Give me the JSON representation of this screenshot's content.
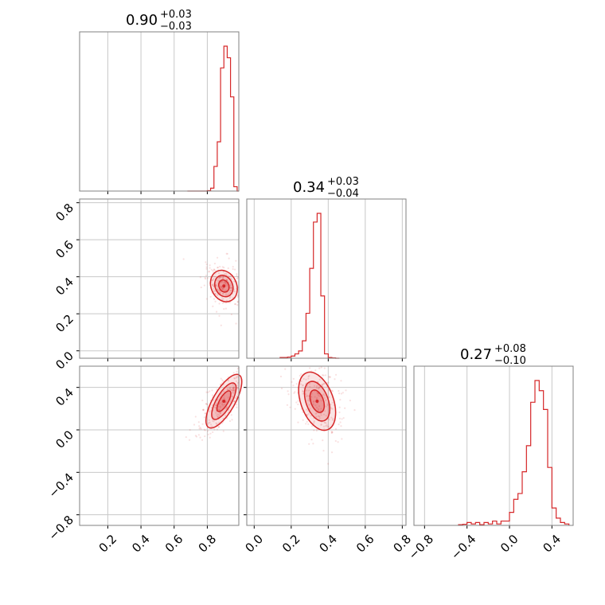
{
  "colors": {
    "accent": "#d62728",
    "grid": "#c8c8c8",
    "axes": "#808080"
  },
  "chart_data": {
    "type": "corner",
    "grid": true,
    "params": [
      {
        "median": "0.90",
        "plus": "+0.03",
        "minus": "−0.03",
        "range": [
          0.03,
          0.99
        ],
        "ticks": [
          0.2,
          0.4,
          0.6,
          0.8
        ],
        "tick_labels": [
          "0.2",
          "0.4",
          "0.6",
          "0.8"
        ]
      },
      {
        "median": "0.34",
        "plus": "+0.03",
        "minus": "−0.04",
        "range": [
          -0.04,
          0.82
        ],
        "ticks": [
          0.0,
          0.2,
          0.4,
          0.6,
          0.8
        ],
        "tick_labels": [
          "0.0",
          "0.2",
          "0.4",
          "0.6",
          "0.8"
        ]
      },
      {
        "median": "0.27",
        "plus": "+0.08",
        "minus": "−0.10",
        "range": [
          -0.9,
          0.6
        ],
        "ticks": [
          -0.8,
          -0.4,
          0.0,
          0.4
        ],
        "tick_labels": [
          "−0.8",
          "−0.4",
          "0.0",
          "0.4"
        ]
      }
    ],
    "histograms": [
      {
        "param": 0,
        "bin_width": 0.02,
        "bins": [
          0.68,
          0.7,
          0.72,
          0.74,
          0.76,
          0.78,
          0.8,
          0.82,
          0.84,
          0.86,
          0.88,
          0.9,
          0.92,
          0.94,
          0.96,
          0.98
        ],
        "heights": [
          0,
          0,
          0,
          0,
          0,
          0,
          0.003,
          0.02,
          0.17,
          0.34,
          0.85,
          1.0,
          0.92,
          0.65,
          0.03,
          0.0
        ]
      },
      {
        "param": 1,
        "bin_width": 0.02,
        "bins": [
          0.14,
          0.16,
          0.18,
          0.2,
          0.22,
          0.24,
          0.26,
          0.28,
          0.3,
          0.32,
          0.34,
          0.36,
          0.38,
          0.4,
          0.42,
          0.44
        ],
        "heights": [
          0.005,
          0.005,
          0.008,
          0.015,
          0.03,
          0.05,
          0.12,
          0.31,
          0.62,
          0.94,
          1.0,
          0.43,
          0.03,
          0.005,
          0.002,
          0.0
        ]
      },
      {
        "param": 2,
        "bin_width": 0.04,
        "bins": [
          -0.48,
          -0.44,
          -0.4,
          -0.36,
          -0.32,
          -0.28,
          -0.24,
          -0.2,
          -0.16,
          -0.12,
          -0.08,
          -0.04,
          0.0,
          0.04,
          0.08,
          0.12,
          0.16,
          0.2,
          0.24,
          0.28,
          0.32,
          0.36,
          0.4,
          0.44,
          0.48,
          0.52
        ],
        "heights": [
          0.005,
          0.008,
          0.02,
          0.01,
          0.02,
          0.005,
          0.02,
          0.01,
          0.03,
          0.01,
          0.03,
          0.03,
          0.09,
          0.18,
          0.22,
          0.37,
          0.55,
          0.85,
          1.0,
          0.93,
          0.8,
          0.4,
          0.12,
          0.05,
          0.02,
          0.01
        ]
      }
    ],
    "contours": [
      {
        "x_param": 0,
        "y_param": 1,
        "center": [
          0.9,
          0.35
        ],
        "spread": [
          0.035,
          0.04
        ],
        "angle_deg": -25
      },
      {
        "x_param": 0,
        "y_param": 2,
        "center": [
          0.9,
          0.27
        ],
        "spread": [
          0.03,
          0.13
        ],
        "angle_deg": 30
      },
      {
        "x_param": 1,
        "y_param": 2,
        "center": [
          0.34,
          0.27
        ],
        "spread": [
          0.04,
          0.13
        ],
        "angle_deg": -20
      }
    ]
  }
}
